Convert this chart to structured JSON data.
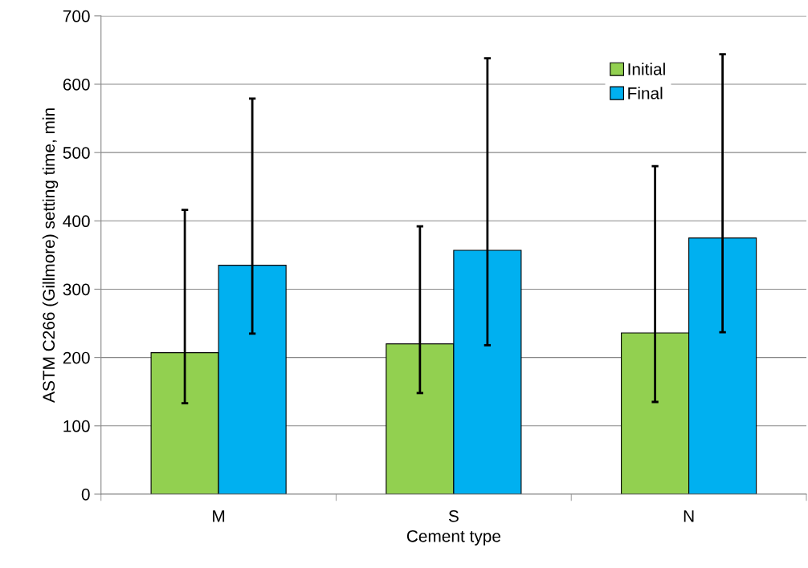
{
  "chart_data": {
    "type": "bar",
    "xlabel": "Cement type",
    "ylabel": "ASTM C266 (Gillmore) setting time, min",
    "categories": [
      "M",
      "S",
      "N"
    ],
    "series": [
      {
        "name": "Initial",
        "color": "#92d050",
        "values": [
          207,
          220,
          236
        ],
        "errors": [
          [
            133,
            416
          ],
          [
            148,
            392
          ],
          [
            135,
            480
          ]
        ]
      },
      {
        "name": "Final",
        "color": "#00b0f0",
        "values": [
          335,
          357,
          375
        ],
        "errors": [
          [
            235,
            579
          ],
          [
            218,
            638
          ],
          [
            237,
            644
          ]
        ]
      }
    ],
    "ylim": [
      0,
      700
    ],
    "yticks": [
      0,
      100,
      200,
      300,
      400,
      500,
      600,
      700
    ],
    "grid": "y",
    "legend": "top right"
  }
}
